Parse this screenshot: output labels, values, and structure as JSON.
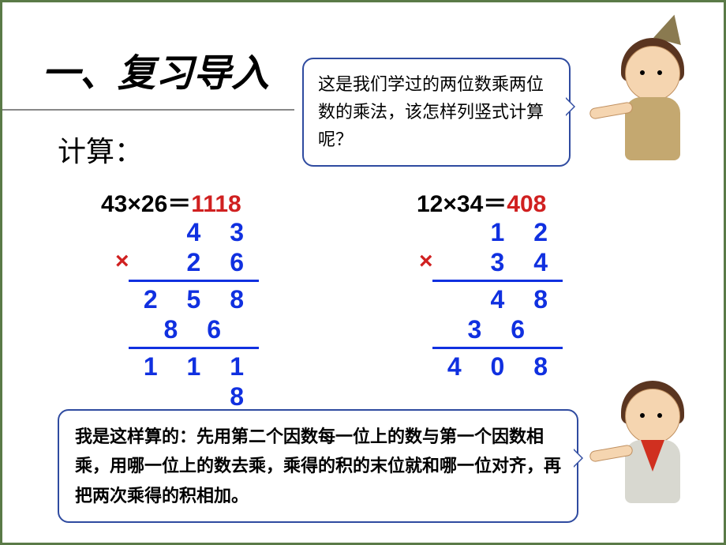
{
  "title": "一、复习导入",
  "subtitle": "计算：",
  "top_bubble": "这是我们学过的两位数乘两位数的乘法，该怎样列竖式计算呢？",
  "bottom_bubble": "我是这样算的：先用第二个因数每一位上的数与第一个因数相乘，用哪一位上的数去乘，乘得的积的末位就和哪一位对齐，再把两次乘得的积相加。",
  "colors": {
    "border": "#5a7a47",
    "bubble_border": "#2f4ba0",
    "calc_digit": "#1030e0",
    "result": "#d02020",
    "text": "#000000",
    "bg": "#ffffff"
  },
  "equation1": {
    "lhs": "43×26＝",
    "result": "1118",
    "vertical": {
      "top": "4 3",
      "multiplier": "2 6",
      "sign": "×",
      "partial1": "2 5 8",
      "partial2": "8 6",
      "product": "1 1 1 8"
    }
  },
  "equation2": {
    "lhs": "12×34＝",
    "result": "408",
    "vertical": {
      "top": "1 2",
      "multiplier": "3 4",
      "sign": "×",
      "partial1": "4 8",
      "partial2": "3 6",
      "product": "4 0 8"
    }
  }
}
